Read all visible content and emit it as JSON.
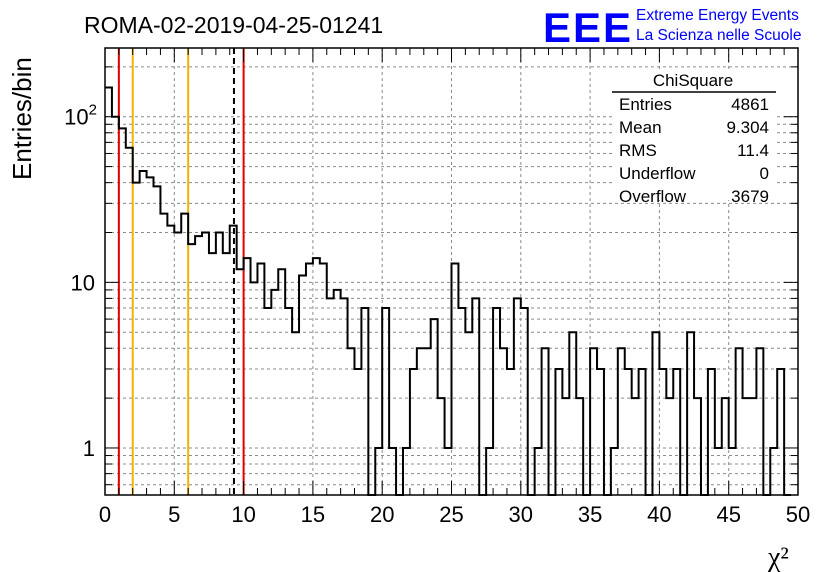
{
  "header": {
    "run_title": "ROMA-02-2019-04-25-01241",
    "logo_text": "EEE",
    "logo_line1": "Extreme Energy Events",
    "logo_line2": "La Scienza nelle Scuole",
    "logo_color": "#0000ff"
  },
  "stats_box": {
    "title": "ChiSquare",
    "rows": [
      {
        "label": "Entries",
        "value": "4861"
      },
      {
        "label": "Mean",
        "value": "9.304"
      },
      {
        "label": "RMS",
        "value": "11.4"
      },
      {
        "label": "Underflow",
        "value": "0"
      },
      {
        "label": "Overflow",
        "value": "3679"
      }
    ]
  },
  "chart_data": {
    "type": "histogram",
    "title": "ROMA-02-2019-04-25-01241",
    "xlabel": "χ²",
    "ylabel": "Entries/bin",
    "xlim": [
      0,
      50
    ],
    "ylim": [
      0.52,
      260
    ],
    "yscale": "log",
    "grid": true,
    "x_ticks": [
      "0",
      "5",
      "10",
      "15",
      "20",
      "25",
      "30",
      "35",
      "40",
      "45",
      "50"
    ],
    "y_ticks": [
      "1",
      "10",
      "10^2"
    ],
    "bin_width": 0.5,
    "bin_edges_start": 0,
    "line_color": "#000000",
    "values": [
      150,
      100,
      85,
      65,
      40,
      47,
      43,
      38,
      26,
      22,
      20,
      26,
      17,
      19,
      20,
      15,
      20,
      15,
      22,
      12,
      14,
      10,
      13,
      7,
      9,
      12,
      7,
      5,
      11,
      13,
      14,
      13,
      8,
      9,
      8,
      4,
      3,
      7,
      0.5,
      1,
      7,
      1,
      0.5,
      1,
      3,
      4,
      4,
      6,
      2,
      1,
      13,
      7,
      5,
      8,
      0.5,
      1,
      7,
      4,
      3,
      8,
      7,
      0.5,
      1,
      4,
      0.5,
      3,
      2,
      5,
      2,
      0.5,
      4,
      3,
      0.5,
      1,
      4,
      3,
      2,
      3,
      0.5,
      5,
      3,
      2,
      3,
      0.5,
      5,
      2,
      0.5,
      3,
      1,
      2,
      1,
      4,
      2,
      2,
      4,
      0.5,
      1,
      3,
      0.5
    ],
    "vertical_lines": [
      {
        "x": 1.0,
        "color": "#e00000",
        "style": "solid"
      },
      {
        "x": 2.0,
        "color": "#f0b400",
        "style": "solid"
      },
      {
        "x": 6.0,
        "color": "#f0b400",
        "style": "solid"
      },
      {
        "x": 9.304,
        "color": "#000000",
        "style": "dashed"
      },
      {
        "x": 10.0,
        "color": "#e00000",
        "style": "solid"
      }
    ]
  }
}
